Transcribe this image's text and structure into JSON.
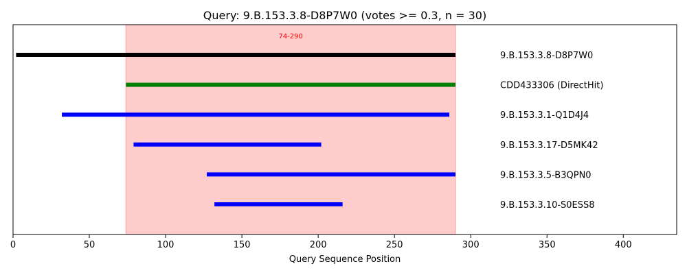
{
  "chart_data": {
    "type": "range_bar",
    "title": "Query: 9.B.153.3.8-D8P7W0 (votes >= 0.3, n = 30)",
    "xlabel": "Query Sequence Position",
    "ylabel": "",
    "xlim": [
      0,
      435
    ],
    "xticks": [
      0,
      50,
      100,
      150,
      200,
      250,
      300,
      350,
      400
    ],
    "grid": false,
    "highlight": {
      "start": 74,
      "end": 290,
      "label": "74-290",
      "color": "#ff9999"
    },
    "series": [
      {
        "name": "9.B.153.3.8-D8P7W0",
        "start": 2,
        "end": 290,
        "color": "#000000"
      },
      {
        "name": "CDD433306 (DirectHit)",
        "start": 74,
        "end": 290,
        "color": "#008000"
      },
      {
        "name": "9.B.153.3.1-Q1D4J4",
        "start": 32,
        "end": 286,
        "color": "#0000ff"
      },
      {
        "name": "9.B.153.3.17-D5MK42",
        "start": 79,
        "end": 202,
        "color": "#0000ff"
      },
      {
        "name": "9.B.153.3.5-B3QPN0",
        "start": 127,
        "end": 290,
        "color": "#0000ff"
      },
      {
        "name": "9.B.153.3.10-S0ESS8",
        "start": 132,
        "end": 216,
        "color": "#0000ff"
      }
    ]
  }
}
